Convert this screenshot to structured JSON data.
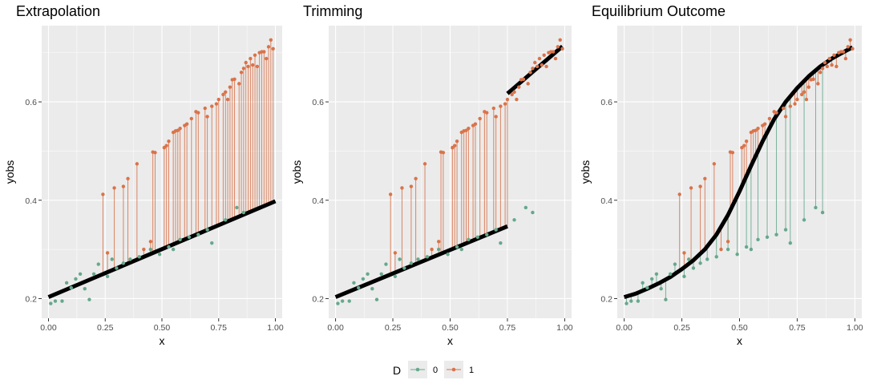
{
  "legend": {
    "title": "D",
    "entries": [
      {
        "label": "0",
        "color": "#66A88C"
      },
      {
        "label": "1",
        "color": "#D9734A"
      }
    ]
  },
  "chart_data": [
    {
      "type": "scatter",
      "title": "Extrapolation",
      "xlabel": "x",
      "ylabel": "yobs",
      "xlim": [
        -0.03,
        1.03
      ],
      "ylim": [
        0.16,
        0.755
      ],
      "x_ticks": [
        0.0,
        0.25,
        0.5,
        0.75,
        1.0
      ],
      "x_tick_labels": [
        "0.00",
        "0.25",
        "0.50",
        "0.75",
        "1.00"
      ],
      "y_ticks": [
        0.2,
        0.4,
        0.6
      ],
      "y_tick_labels": [
        "0.2",
        "0.4",
        "0.6"
      ],
      "fit_line": [
        [
          0.0,
          0.203
        ],
        [
          1.0,
          0.398
        ]
      ],
      "segments_from": "D1_to_fit",
      "series_D0": [
        [
          0.01,
          0.19
        ],
        [
          0.03,
          0.195
        ],
        [
          0.06,
          0.195
        ],
        [
          0.08,
          0.232
        ],
        [
          0.1,
          0.222
        ],
        [
          0.12,
          0.24
        ],
        [
          0.14,
          0.25
        ],
        [
          0.16,
          0.22
        ],
        [
          0.18,
          0.198
        ],
        [
          0.2,
          0.25
        ],
        [
          0.22,
          0.27
        ],
        [
          0.26,
          0.245
        ],
        [
          0.28,
          0.28
        ],
        [
          0.3,
          0.262
        ],
        [
          0.33,
          0.272
        ],
        [
          0.36,
          0.28
        ],
        [
          0.4,
          0.285
        ],
        [
          0.45,
          0.3
        ],
        [
          0.49,
          0.29
        ],
        [
          0.53,
          0.305
        ],
        [
          0.55,
          0.3
        ],
        [
          0.58,
          0.32
        ],
        [
          0.62,
          0.325
        ],
        [
          0.66,
          0.33
        ],
        [
          0.7,
          0.34
        ],
        [
          0.72,
          0.313
        ],
        [
          0.78,
          0.36
        ],
        [
          0.83,
          0.385
        ],
        [
          0.86,
          0.375
        ]
      ],
      "series_D1": [
        [
          0.24,
          0.412
        ],
        [
          0.26,
          0.293
        ],
        [
          0.29,
          0.425
        ],
        [
          0.33,
          0.428
        ],
        [
          0.35,
          0.444
        ],
        [
          0.39,
          0.474
        ],
        [
          0.42,
          0.3
        ],
        [
          0.45,
          0.316
        ],
        [
          0.46,
          0.498
        ],
        [
          0.47,
          0.497
        ],
        [
          0.51,
          0.507
        ],
        [
          0.52,
          0.511
        ],
        [
          0.53,
          0.52
        ],
        [
          0.55,
          0.538
        ],
        [
          0.56,
          0.541
        ],
        [
          0.57,
          0.542
        ],
        [
          0.58,
          0.546
        ],
        [
          0.6,
          0.552
        ],
        [
          0.61,
          0.555
        ],
        [
          0.63,
          0.566
        ],
        [
          0.65,
          0.58
        ],
        [
          0.66,
          0.578
        ],
        [
          0.69,
          0.587
        ],
        [
          0.7,
          0.57
        ],
        [
          0.72,
          0.591
        ],
        [
          0.74,
          0.596
        ],
        [
          0.75,
          0.605
        ],
        [
          0.77,
          0.615
        ],
        [
          0.78,
          0.62
        ],
        [
          0.79,
          0.605
        ],
        [
          0.8,
          0.63
        ],
        [
          0.81,
          0.645
        ],
        [
          0.82,
          0.646
        ],
        [
          0.84,
          0.637
        ],
        [
          0.85,
          0.66
        ],
        [
          0.86,
          0.668
        ],
        [
          0.87,
          0.68
        ],
        [
          0.88,
          0.672
        ],
        [
          0.89,
          0.688
        ],
        [
          0.9,
          0.675
        ],
        [
          0.91,
          0.695
        ],
        [
          0.92,
          0.672
        ],
        [
          0.93,
          0.7
        ],
        [
          0.94,
          0.702
        ],
        [
          0.95,
          0.702
        ],
        [
          0.96,
          0.688
        ],
        [
          0.97,
          0.712
        ],
        [
          0.98,
          0.726
        ],
        [
          0.99,
          0.708
        ]
      ]
    },
    {
      "type": "scatter",
      "title": "Trimming",
      "xlabel": "x",
      "ylabel": "yobs",
      "xlim": [
        -0.03,
        1.03
      ],
      "ylim": [
        0.16,
        0.755
      ],
      "x_ticks": [
        0.0,
        0.25,
        0.5,
        0.75,
        1.0
      ],
      "x_tick_labels": [
        "0.00",
        "0.25",
        "0.50",
        "0.75",
        "1.00"
      ],
      "y_ticks": [
        0.2,
        0.4,
        0.6
      ],
      "y_tick_labels": [
        "0.2",
        "0.4",
        "0.6"
      ],
      "fit_line_left": [
        [
          0.0,
          0.203
        ],
        [
          0.75,
          0.347
        ]
      ],
      "fit_line_right": [
        [
          0.75,
          0.617
        ],
        [
          0.99,
          0.713
        ]
      ],
      "segments_from": "D1_below_0.75_to_fit",
      "series_D0": [
        [
          0.01,
          0.19
        ],
        [
          0.03,
          0.195
        ],
        [
          0.06,
          0.195
        ],
        [
          0.08,
          0.232
        ],
        [
          0.1,
          0.222
        ],
        [
          0.12,
          0.24
        ],
        [
          0.14,
          0.25
        ],
        [
          0.16,
          0.22
        ],
        [
          0.18,
          0.198
        ],
        [
          0.2,
          0.25
        ],
        [
          0.22,
          0.27
        ],
        [
          0.26,
          0.245
        ],
        [
          0.28,
          0.28
        ],
        [
          0.3,
          0.262
        ],
        [
          0.33,
          0.272
        ],
        [
          0.36,
          0.28
        ],
        [
          0.4,
          0.285
        ],
        [
          0.45,
          0.3
        ],
        [
          0.49,
          0.29
        ],
        [
          0.53,
          0.305
        ],
        [
          0.55,
          0.3
        ],
        [
          0.58,
          0.32
        ],
        [
          0.62,
          0.325
        ],
        [
          0.66,
          0.33
        ],
        [
          0.7,
          0.34
        ],
        [
          0.72,
          0.313
        ],
        [
          0.78,
          0.36
        ],
        [
          0.83,
          0.385
        ],
        [
          0.86,
          0.375
        ]
      ],
      "series_D1": [
        [
          0.24,
          0.412
        ],
        [
          0.26,
          0.293
        ],
        [
          0.29,
          0.425
        ],
        [
          0.33,
          0.428
        ],
        [
          0.35,
          0.444
        ],
        [
          0.39,
          0.474
        ],
        [
          0.42,
          0.3
        ],
        [
          0.45,
          0.316
        ],
        [
          0.46,
          0.498
        ],
        [
          0.47,
          0.497
        ],
        [
          0.51,
          0.507
        ],
        [
          0.52,
          0.511
        ],
        [
          0.53,
          0.52
        ],
        [
          0.55,
          0.538
        ],
        [
          0.56,
          0.541
        ],
        [
          0.57,
          0.542
        ],
        [
          0.58,
          0.546
        ],
        [
          0.6,
          0.552
        ],
        [
          0.61,
          0.555
        ],
        [
          0.63,
          0.566
        ],
        [
          0.65,
          0.58
        ],
        [
          0.66,
          0.578
        ],
        [
          0.69,
          0.587
        ],
        [
          0.7,
          0.57
        ],
        [
          0.72,
          0.591
        ],
        [
          0.74,
          0.596
        ],
        [
          0.75,
          0.605
        ],
        [
          0.77,
          0.615
        ],
        [
          0.78,
          0.62
        ],
        [
          0.79,
          0.605
        ],
        [
          0.8,
          0.63
        ],
        [
          0.81,
          0.645
        ],
        [
          0.82,
          0.646
        ],
        [
          0.84,
          0.637
        ],
        [
          0.85,
          0.66
        ],
        [
          0.86,
          0.668
        ],
        [
          0.87,
          0.68
        ],
        [
          0.88,
          0.672
        ],
        [
          0.89,
          0.688
        ],
        [
          0.9,
          0.675
        ],
        [
          0.91,
          0.695
        ],
        [
          0.92,
          0.672
        ],
        [
          0.93,
          0.7
        ],
        [
          0.94,
          0.702
        ],
        [
          0.95,
          0.702
        ],
        [
          0.96,
          0.688
        ],
        [
          0.97,
          0.712
        ],
        [
          0.98,
          0.726
        ],
        [
          0.99,
          0.708
        ]
      ]
    },
    {
      "type": "scatter",
      "title": "Equilibrium Outcome",
      "xlabel": "x",
      "ylabel": "yobs",
      "xlim": [
        -0.03,
        1.03
      ],
      "ylim": [
        0.16,
        0.755
      ],
      "x_ticks": [
        0.0,
        0.25,
        0.5,
        0.75,
        1.0
      ],
      "x_tick_labels": [
        "0.00",
        "0.25",
        "0.50",
        "0.75",
        "1.00"
      ],
      "y_ticks": [
        0.2,
        0.4,
        0.6
      ],
      "y_tick_labels": [
        "0.2",
        "0.4",
        "0.6"
      ],
      "fit_curve": [
        [
          0.0,
          0.203
        ],
        [
          0.05,
          0.21
        ],
        [
          0.1,
          0.22
        ],
        [
          0.15,
          0.231
        ],
        [
          0.2,
          0.244
        ],
        [
          0.25,
          0.26
        ],
        [
          0.3,
          0.278
        ],
        [
          0.35,
          0.3
        ],
        [
          0.4,
          0.33
        ],
        [
          0.45,
          0.37
        ],
        [
          0.5,
          0.418
        ],
        [
          0.55,
          0.47
        ],
        [
          0.6,
          0.52
        ],
        [
          0.65,
          0.565
        ],
        [
          0.7,
          0.6
        ],
        [
          0.75,
          0.628
        ],
        [
          0.8,
          0.652
        ],
        [
          0.85,
          0.672
        ],
        [
          0.9,
          0.688
        ],
        [
          0.95,
          0.701
        ],
        [
          0.99,
          0.711
        ]
      ],
      "segments_from": "all_points_to_curve",
      "series_D0": [
        [
          0.01,
          0.19
        ],
        [
          0.03,
          0.195
        ],
        [
          0.06,
          0.195
        ],
        [
          0.08,
          0.232
        ],
        [
          0.1,
          0.222
        ],
        [
          0.12,
          0.24
        ],
        [
          0.14,
          0.25
        ],
        [
          0.16,
          0.22
        ],
        [
          0.18,
          0.198
        ],
        [
          0.2,
          0.25
        ],
        [
          0.22,
          0.27
        ],
        [
          0.26,
          0.245
        ],
        [
          0.28,
          0.28
        ],
        [
          0.3,
          0.262
        ],
        [
          0.33,
          0.272
        ],
        [
          0.36,
          0.28
        ],
        [
          0.4,
          0.285
        ],
        [
          0.45,
          0.3
        ],
        [
          0.49,
          0.29
        ],
        [
          0.53,
          0.305
        ],
        [
          0.55,
          0.3
        ],
        [
          0.58,
          0.32
        ],
        [
          0.62,
          0.325
        ],
        [
          0.66,
          0.33
        ],
        [
          0.7,
          0.34
        ],
        [
          0.72,
          0.313
        ],
        [
          0.78,
          0.36
        ],
        [
          0.83,
          0.385
        ],
        [
          0.86,
          0.375
        ]
      ],
      "series_D1": [
        [
          0.24,
          0.412
        ],
        [
          0.26,
          0.293
        ],
        [
          0.29,
          0.425
        ],
        [
          0.33,
          0.428
        ],
        [
          0.35,
          0.444
        ],
        [
          0.39,
          0.474
        ],
        [
          0.42,
          0.3
        ],
        [
          0.45,
          0.316
        ],
        [
          0.46,
          0.498
        ],
        [
          0.47,
          0.497
        ],
        [
          0.51,
          0.507
        ],
        [
          0.52,
          0.511
        ],
        [
          0.53,
          0.52
        ],
        [
          0.55,
          0.538
        ],
        [
          0.56,
          0.541
        ],
        [
          0.57,
          0.542
        ],
        [
          0.58,
          0.546
        ],
        [
          0.6,
          0.552
        ],
        [
          0.61,
          0.555
        ],
        [
          0.63,
          0.566
        ],
        [
          0.65,
          0.58
        ],
        [
          0.66,
          0.578
        ],
        [
          0.69,
          0.587
        ],
        [
          0.7,
          0.57
        ],
        [
          0.72,
          0.591
        ],
        [
          0.74,
          0.596
        ],
        [
          0.75,
          0.605
        ],
        [
          0.77,
          0.615
        ],
        [
          0.78,
          0.62
        ],
        [
          0.79,
          0.605
        ],
        [
          0.8,
          0.63
        ],
        [
          0.81,
          0.645
        ],
        [
          0.82,
          0.646
        ],
        [
          0.84,
          0.637
        ],
        [
          0.85,
          0.66
        ],
        [
          0.86,
          0.668
        ],
        [
          0.87,
          0.68
        ],
        [
          0.88,
          0.672
        ],
        [
          0.89,
          0.688
        ],
        [
          0.9,
          0.675
        ],
        [
          0.91,
          0.695
        ],
        [
          0.92,
          0.672
        ],
        [
          0.93,
          0.7
        ],
        [
          0.94,
          0.702
        ],
        [
          0.95,
          0.702
        ],
        [
          0.96,
          0.688
        ],
        [
          0.97,
          0.712
        ],
        [
          0.98,
          0.726
        ],
        [
          0.99,
          0.708
        ]
      ]
    }
  ]
}
